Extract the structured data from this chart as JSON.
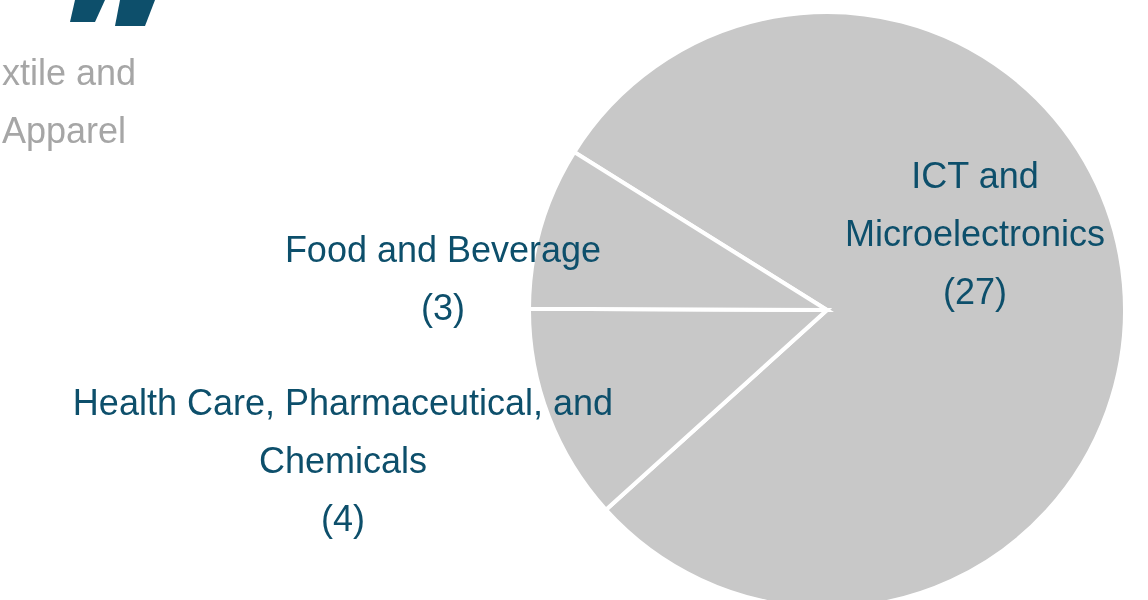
{
  "chart_data": {
    "type": "pie",
    "categories": [
      "ICT and Microelectronics",
      "Health Care, Pharmaceutical, and Chemicals",
      "Food and Beverage"
    ],
    "values": [
      27,
      4,
      3
    ],
    "colors": [
      "#c8c8c8",
      "#c8c8c8",
      "#c8c8c8"
    ],
    "value_labels": [
      "(27)",
      "(4)",
      "(3)"
    ],
    "annotations": [
      "xtile and\nApparel"
    ]
  }
}
